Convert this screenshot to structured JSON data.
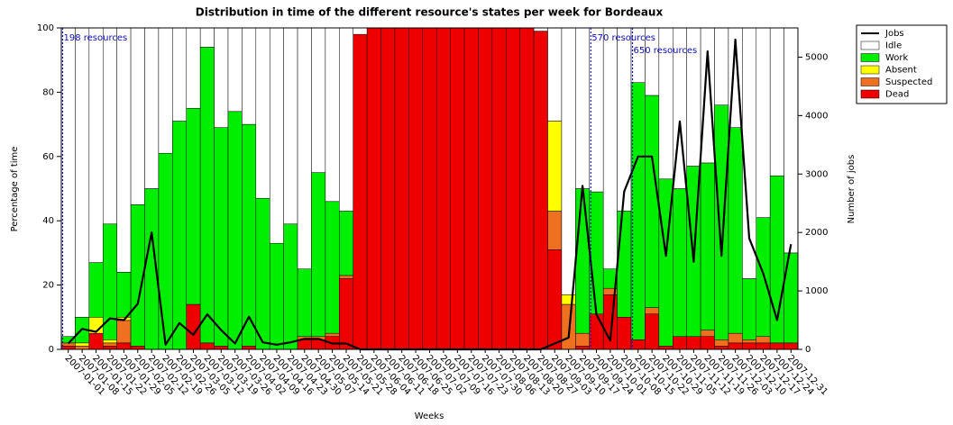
{
  "chart_data": {
    "type": "bar",
    "title": "Distribution in time of the different resource's states per week for Bordeaux",
    "x_label": "Weeks",
    "y_label": "Percentage of time",
    "y2_label": "Number of jobs",
    "categories": [
      "2007-01-01",
      "2007-01-08",
      "2007-01-15",
      "2007-01-22",
      "2007-01-29",
      "2007-02-05",
      "2007-02-12",
      "2007-02-19",
      "2007-02-26",
      "2007-03-05",
      "2007-03-12",
      "2007-03-19",
      "2007-03-26",
      "2007-04-02",
      "2007-04-09",
      "2007-04-16",
      "2007-04-23",
      "2007-04-30",
      "2007-05-07",
      "2007-05-14",
      "2007-05-21",
      "2007-05-28",
      "2007-06-04",
      "2007-06-11",
      "2007-06-18",
      "2007-06-25",
      "2007-07-02",
      "2007-07-09",
      "2007-07-16",
      "2007-07-23",
      "2007-07-30",
      "2007-08-06",
      "2007-08-13",
      "2007-08-20",
      "2007-08-27",
      "2007-09-03",
      "2007-09-10",
      "2007-09-17",
      "2007-09-24",
      "2007-10-01",
      "2007-10-08",
      "2007-10-15",
      "2007-10-22",
      "2007-10-29",
      "2007-11-05",
      "2007-11-12",
      "2007-11-19",
      "2007-11-26",
      "2007-12-03",
      "2007-12-10",
      "2007-12-17",
      "2007-12-24",
      "2007-12-31"
    ],
    "series": [
      {
        "name": "Jobs",
        "type": "line",
        "axis": "y2",
        "color": "#000000",
        "values": [
          100,
          350,
          300,
          530,
          500,
          780,
          2000,
          80,
          450,
          250,
          600,
          330,
          100,
          560,
          120,
          80,
          120,
          180,
          180,
          100,
          100,
          0,
          0,
          0,
          0,
          0,
          0,
          0,
          0,
          0,
          0,
          0,
          0,
          0,
          0,
          100,
          200,
          2800,
          600,
          150,
          2700,
          3300,
          3300,
          1600,
          3900,
          1500,
          5100,
          1600,
          5300,
          1900,
          1300,
          500,
          1800
        ]
      },
      {
        "name": "Idle",
        "color": "#ffffff",
        "values": [
          96,
          90,
          73,
          61,
          76,
          55,
          50,
          39,
          29,
          25,
          6,
          31,
          26,
          30,
          53,
          67,
          61,
          75,
          45,
          54,
          57,
          2,
          0,
          0,
          0,
          0,
          0,
          0,
          0,
          0,
          0,
          0,
          0,
          0,
          1,
          29,
          83,
          50,
          51,
          75,
          57,
          17,
          21,
          47,
          50,
          43,
          42,
          24,
          31,
          78,
          59,
          46,
          70
        ]
      },
      {
        "name": "Work",
        "color": "#00ee00",
        "values": [
          2,
          8,
          17,
          36,
          14,
          44,
          50,
          61,
          71,
          61,
          92,
          68,
          74,
          69,
          47,
          33,
          39,
          21,
          51,
          41,
          20,
          0,
          0,
          0,
          0,
          0,
          0,
          0,
          0,
          0,
          0,
          0,
          0,
          0,
          0,
          0,
          0,
          45,
          38,
          6,
          33,
          80,
          66,
          52,
          46,
          53,
          52,
          73,
          64,
          19,
          37,
          52,
          28
        ]
      },
      {
        "name": "Absent",
        "color": "#ffff00",
        "values": [
          0,
          1,
          5,
          1,
          1,
          0,
          0,
          0,
          0,
          0,
          0,
          0,
          0,
          0,
          0,
          0,
          0,
          0,
          0,
          0,
          0,
          0,
          0,
          0,
          0,
          0,
          0,
          0,
          0,
          0,
          0,
          0,
          0,
          0,
          0,
          28,
          3,
          0,
          0,
          0,
          0,
          0,
          0,
          0,
          0,
          0,
          0,
          0,
          0,
          0,
          0,
          0,
          0
        ]
      },
      {
        "name": "Suspected",
        "color": "#ee7020",
        "values": [
          1,
          1,
          0,
          1,
          7,
          0,
          0,
          0,
          0,
          0,
          0,
          0,
          0,
          0,
          0,
          0,
          0,
          1,
          1,
          1,
          1,
          0,
          0,
          0,
          0,
          0,
          0,
          0,
          0,
          0,
          0,
          0,
          0,
          0,
          0,
          12,
          14,
          4,
          0,
          2,
          0,
          0,
          2,
          0,
          0,
          0,
          2,
          2,
          3,
          1,
          2,
          0,
          0
        ]
      },
      {
        "name": "Dead",
        "color": "#ee0000",
        "values": [
          1,
          0,
          5,
          1,
          2,
          1,
          0,
          0,
          0,
          14,
          2,
          1,
          0,
          1,
          0,
          0,
          0,
          3,
          3,
          4,
          22,
          98,
          100,
          100,
          100,
          100,
          100,
          100,
          100,
          100,
          100,
          100,
          100,
          100,
          99,
          31,
          0,
          1,
          11,
          17,
          10,
          3,
          11,
          1,
          4,
          4,
          4,
          1,
          2,
          2,
          2,
          2,
          2
        ]
      }
    ],
    "ylim": [
      0,
      100
    ],
    "yticks": [
      0,
      20,
      40,
      60,
      80,
      100
    ],
    "y2lim": [
      0,
      5500
    ],
    "y2ticks": [
      0,
      1000,
      2000,
      3000,
      4000,
      5000
    ],
    "annotations": [
      {
        "text": "198 resources",
        "x": "2007-01-01"
      },
      {
        "text": "570 resources",
        "x": "2007-09-24"
      },
      {
        "text": "650 resources",
        "x": "2007-10-15"
      }
    ],
    "annotation_color": "#1010c0",
    "legend": "outside-top-right"
  }
}
